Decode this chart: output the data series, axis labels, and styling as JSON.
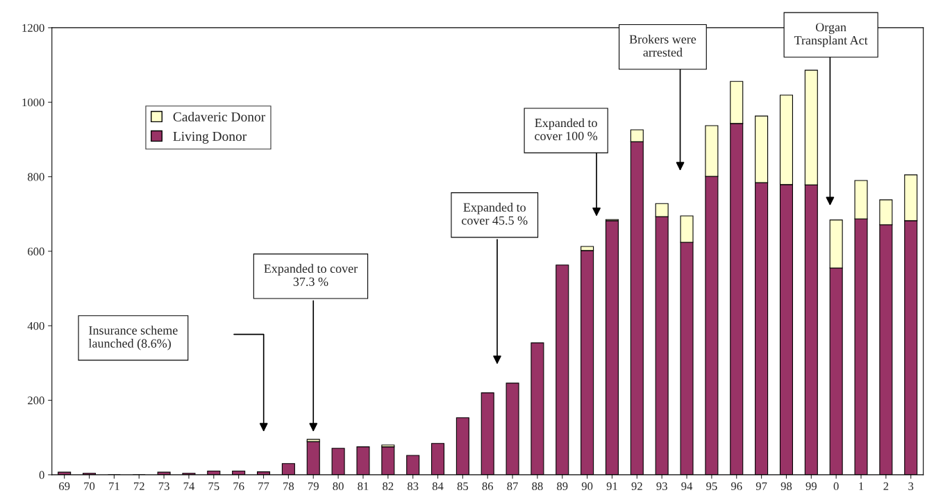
{
  "chart_data": {
    "type": "bar",
    "stacked": true,
    "categories": [
      "69",
      "70",
      "71",
      "72",
      "73",
      "74",
      "75",
      "76",
      "77",
      "78",
      "79",
      "80",
      "81",
      "82",
      "83",
      "84",
      "85",
      "86",
      "87",
      "88",
      "89",
      "90",
      "91",
      "92",
      "93",
      "94",
      "95",
      "96",
      "97",
      "98",
      "99",
      "0",
      "1",
      "2",
      "3"
    ],
    "series": [
      {
        "name": "Living Donor",
        "color": "#993366",
        "values": [
          7,
          4,
          0,
          0,
          7,
          4,
          10,
          10,
          8,
          30,
          89,
          71,
          75,
          75,
          52,
          84,
          153,
          220,
          246,
          354,
          563,
          602,
          682,
          894,
          693,
          624,
          801,
          943,
          784,
          779,
          778,
          555,
          687,
          671,
          682
        ]
      },
      {
        "name": "Cadaveric Donor",
        "color": "#ffffcc",
        "values": [
          null,
          null,
          null,
          null,
          null,
          null,
          null,
          null,
          null,
          null,
          6,
          null,
          null,
          5,
          null,
          null,
          null,
          null,
          null,
          null,
          null,
          11,
          3,
          32,
          35,
          71,
          136,
          113,
          179,
          240,
          308,
          129,
          103,
          67,
          123
        ]
      }
    ],
    "ylim": [
      0,
      1200
    ],
    "yticks": [
      0,
      200,
      400,
      600,
      800,
      1000,
      1200
    ],
    "grid": false,
    "legend": "top left",
    "annotations": [
      "Insurance scheme\nlaunched (8.6%)",
      "Expanded to cover\n37.3 %",
      "Expanded to\ncover 45.5 %",
      "Expanded to\ncover 100 %",
      "Brokers were\narrested",
      "Organ\nTransplant Act"
    ]
  }
}
